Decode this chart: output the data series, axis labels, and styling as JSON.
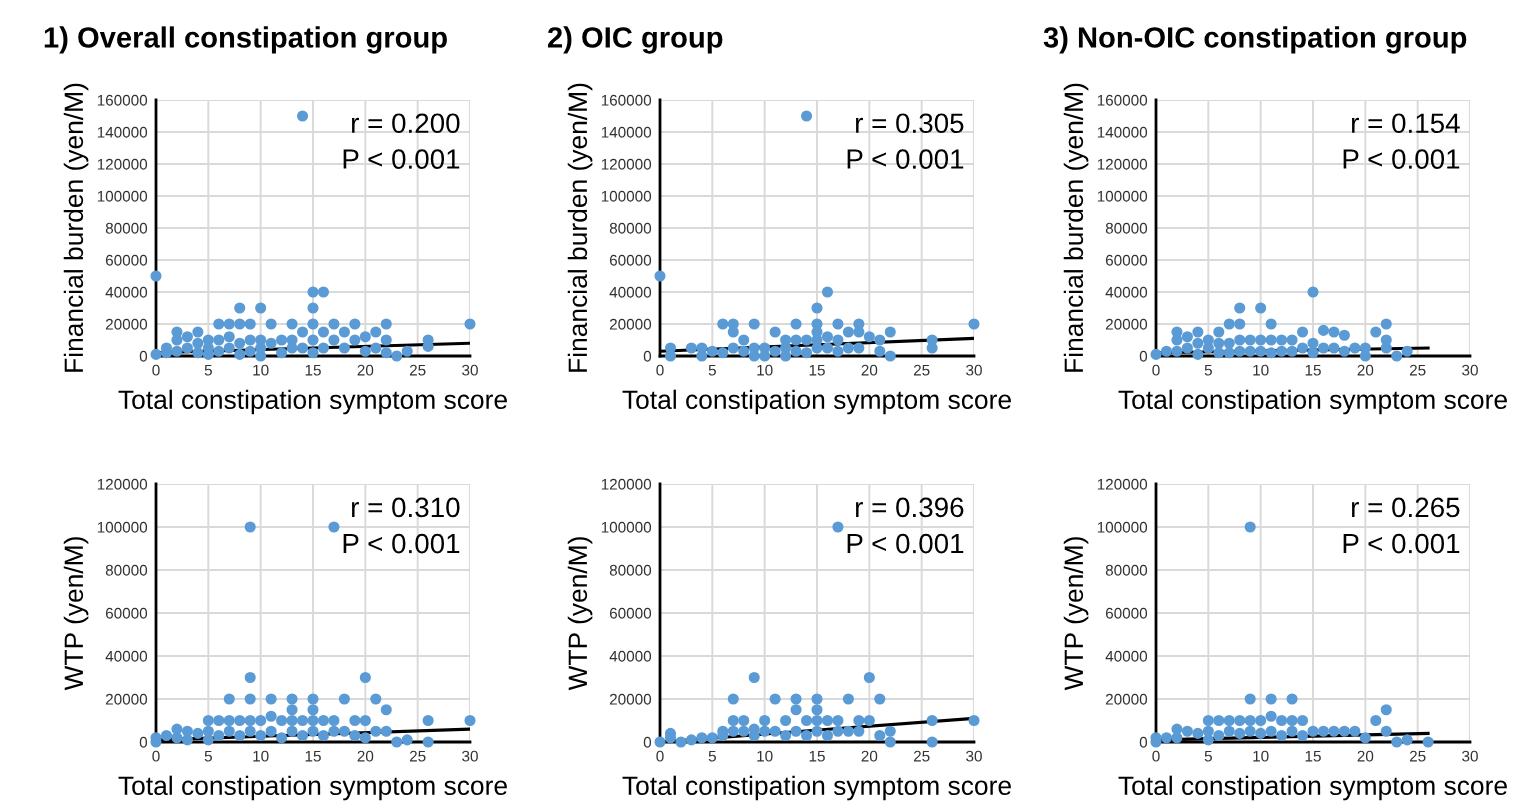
{
  "chart_data": [
    {
      "type": "scatter",
      "title": "1) Overall constipation group",
      "xlabel": "Total constipation symptom score",
      "ylabel": "Financial burden (yen/M)",
      "xlim": [
        0,
        30
      ],
      "ylim": [
        0,
        160000
      ],
      "xticks": [
        0,
        5,
        10,
        15,
        20,
        25,
        30
      ],
      "yticks": [
        0,
        20000,
        40000,
        60000,
        80000,
        100000,
        120000,
        140000,
        160000
      ],
      "grid": true,
      "annotations": [
        "r = 0.200",
        "P < 0.001"
      ],
      "series": [
        {
          "type": "scatter",
          "marker": "circle",
          "color": "#5b9bd5",
          "x": [
            0,
            0,
            1,
            1,
            2,
            2,
            2,
            3,
            3,
            4,
            4,
            4,
            5,
            5,
            5,
            6,
            6,
            6,
            7,
            7,
            7,
            8,
            8,
            8,
            8,
            9,
            9,
            9,
            10,
            10,
            10,
            10,
            11,
            11,
            12,
            12,
            13,
            13,
            13,
            14,
            14,
            14,
            15,
            15,
            15,
            15,
            15,
            16,
            16,
            16,
            17,
            17,
            18,
            18,
            19,
            19,
            20,
            20,
            21,
            21,
            22,
            22,
            22,
            23,
            24,
            26,
            26,
            30
          ],
          "values": [
            50000,
            1000,
            2000,
            5000,
            15000,
            10000,
            3000,
            12000,
            5000,
            15000,
            8000,
            2000,
            10000,
            5000,
            1000,
            20000,
            10000,
            3000,
            20000,
            12000,
            5000,
            30000,
            20000,
            8000,
            1000,
            20000,
            10000,
            3000,
            30000,
            10000,
            5000,
            0,
            20000,
            8000,
            10000,
            2000,
            20000,
            10000,
            5000,
            150000,
            15000,
            5000,
            40000,
            30000,
            20000,
            10000,
            2000,
            40000,
            15000,
            5000,
            20000,
            10000,
            15000,
            5000,
            20000,
            10000,
            12000,
            3000,
            15000,
            5000,
            20000,
            10000,
            2000,
            0,
            3000,
            10000,
            6000,
            20000
          ]
        },
        {
          "type": "line",
          "color": "#000000",
          "x": [
            0,
            30
          ],
          "values": [
            2000,
            8000
          ]
        }
      ]
    },
    {
      "type": "scatter",
      "title": "2) OIC group",
      "xlabel": "Total constipation symptom score",
      "ylabel": "Financial burden (yen/M)",
      "xlim": [
        0,
        30
      ],
      "ylim": [
        0,
        160000
      ],
      "xticks": [
        0,
        5,
        10,
        15,
        20,
        25,
        30
      ],
      "yticks": [
        0,
        20000,
        40000,
        60000,
        80000,
        100000,
        120000,
        140000,
        160000
      ],
      "grid": true,
      "annotations": [
        "r = 0.305",
        "P < 0.001"
      ],
      "series": [
        {
          "type": "scatter",
          "marker": "circle",
          "color": "#5b9bd5",
          "x": [
            0,
            1,
            1,
            3,
            4,
            4,
            5,
            6,
            6,
            7,
            7,
            7,
            8,
            8,
            9,
            9,
            9,
            10,
            10,
            11,
            11,
            12,
            12,
            12,
            13,
            13,
            13,
            14,
            14,
            14,
            15,
            15,
            15,
            15,
            15,
            16,
            16,
            16,
            17,
            17,
            17,
            18,
            18,
            19,
            19,
            19,
            20,
            21,
            21,
            22,
            22,
            26,
            26,
            30
          ],
          "values": [
            50000,
            5000,
            0,
            5000,
            5000,
            0,
            3000,
            20000,
            2000,
            20000,
            15000,
            5000,
            10000,
            3000,
            20000,
            5000,
            0,
            5000,
            0,
            15000,
            3000,
            10000,
            5000,
            0,
            20000,
            10000,
            3000,
            150000,
            10000,
            2000,
            30000,
            20000,
            15000,
            10000,
            5000,
            40000,
            12000,
            5000,
            20000,
            10000,
            3000,
            15000,
            5000,
            20000,
            15000,
            5000,
            12000,
            10000,
            3000,
            15000,
            0,
            10000,
            5000,
            20000
          ]
        },
        {
          "type": "line",
          "color": "#000000",
          "x": [
            0,
            30
          ],
          "values": [
            3000,
            11000
          ]
        }
      ]
    },
    {
      "type": "scatter",
      "title": "3) Non-OIC constipation group",
      "xlabel": "Total constipation symptom score",
      "ylabel": "Financial burden (yen/M)",
      "xlim": [
        0,
        30
      ],
      "ylim": [
        0,
        160000
      ],
      "xticks": [
        0,
        5,
        10,
        15,
        20,
        25,
        30
      ],
      "yticks": [
        0,
        20000,
        40000,
        60000,
        80000,
        100000,
        120000,
        140000,
        160000
      ],
      "grid": true,
      "annotations": [
        "r = 0.154",
        "P < 0.001"
      ],
      "series": [
        {
          "type": "scatter",
          "marker": "circle",
          "color": "#5b9bd5",
          "x": [
            0,
            1,
            2,
            2,
            2,
            3,
            3,
            4,
            4,
            4,
            5,
            5,
            6,
            6,
            6,
            7,
            7,
            7,
            8,
            8,
            8,
            8,
            9,
            9,
            10,
            10,
            10,
            11,
            11,
            11,
            12,
            12,
            13,
            13,
            14,
            14,
            15,
            15,
            15,
            16,
            16,
            17,
            17,
            18,
            18,
            19,
            20,
            20,
            21,
            22,
            22,
            22,
            23,
            24
          ],
          "values": [
            1000,
            3000,
            15000,
            10000,
            3000,
            12000,
            5000,
            15000,
            8000,
            1000,
            10000,
            5000,
            15000,
            8000,
            2000,
            20000,
            8000,
            2000,
            30000,
            20000,
            10000,
            3000,
            10000,
            3000,
            30000,
            10000,
            3000,
            20000,
            10000,
            2000,
            10000,
            3000,
            10000,
            3000,
            15000,
            5000,
            40000,
            8000,
            2000,
            16000,
            5000,
            15000,
            5000,
            13000,
            3000,
            5000,
            5000,
            0,
            15000,
            20000,
            10000,
            5000,
            0,
            3000
          ]
        },
        {
          "type": "line",
          "color": "#000000",
          "x": [
            0,
            26
          ],
          "values": [
            2000,
            5000
          ]
        }
      ]
    },
    {
      "type": "scatter",
      "xlabel": "Total constipation symptom score",
      "ylabel": "WTP (yen/M)",
      "xlim": [
        0,
        30
      ],
      "ylim": [
        0,
        120000
      ],
      "xticks": [
        0,
        5,
        10,
        15,
        20,
        25,
        30
      ],
      "yticks": [
        0,
        20000,
        40000,
        60000,
        80000,
        100000,
        120000
      ],
      "grid": true,
      "annotations": [
        "r = 0.310",
        "P < 0.001"
      ],
      "series": [
        {
          "type": "scatter",
          "marker": "circle",
          "color": "#5b9bd5",
          "x": [
            0,
            0,
            1,
            2,
            2,
            3,
            3,
            4,
            5,
            5,
            5,
            6,
            6,
            7,
            7,
            7,
            8,
            8,
            9,
            9,
            9,
            9,
            9,
            10,
            10,
            11,
            11,
            11,
            12,
            12,
            13,
            13,
            13,
            13,
            14,
            14,
            15,
            15,
            15,
            15,
            16,
            16,
            17,
            17,
            17,
            18,
            18,
            19,
            19,
            20,
            20,
            20,
            21,
            21,
            22,
            22,
            23,
            24,
            26,
            26,
            30
          ],
          "values": [
            2000,
            0,
            3000,
            6000,
            2000,
            5000,
            1000,
            4000,
            10000,
            5000,
            1000,
            10000,
            3000,
            20000,
            10000,
            5000,
            10000,
            3000,
            100000,
            30000,
            20000,
            10000,
            5000,
            10000,
            3000,
            20000,
            12000,
            5000,
            10000,
            2000,
            20000,
            15000,
            10000,
            5000,
            10000,
            3000,
            20000,
            15000,
            10000,
            5000,
            10000,
            3000,
            100000,
            10000,
            5000,
            20000,
            5000,
            10000,
            3000,
            30000,
            10000,
            2000,
            20000,
            5000,
            15000,
            5000,
            0,
            1000,
            10000,
            0,
            10000
          ]
        },
        {
          "type": "line",
          "color": "#000000",
          "x": [
            0,
            30
          ],
          "values": [
            1000,
            6000
          ]
        }
      ]
    },
    {
      "type": "scatter",
      "xlabel": "Total constipation symptom score",
      "ylabel": "WTP (yen/M)",
      "xlim": [
        0,
        30
      ],
      "ylim": [
        0,
        120000
      ],
      "xticks": [
        0,
        5,
        10,
        15,
        20,
        25,
        30
      ],
      "yticks": [
        0,
        20000,
        40000,
        60000,
        80000,
        100000,
        120000
      ],
      "grid": true,
      "annotations": [
        "r = 0.396",
        "P < 0.001"
      ],
      "series": [
        {
          "type": "scatter",
          "marker": "circle",
          "color": "#5b9bd5",
          "x": [
            0,
            1,
            1,
            2,
            3,
            4,
            5,
            6,
            6,
            7,
            7,
            7,
            8,
            8,
            9,
            9,
            9,
            10,
            10,
            11,
            11,
            12,
            12,
            13,
            13,
            13,
            14,
            14,
            15,
            15,
            15,
            15,
            16,
            16,
            17,
            17,
            17,
            18,
            18,
            19,
            19,
            20,
            20,
            21,
            21,
            22,
            22,
            26,
            26,
            30
          ],
          "values": [
            0,
            4000,
            2000,
            0,
            1000,
            2000,
            2000,
            5000,
            3000,
            20000,
            10000,
            5000,
            10000,
            5000,
            30000,
            6000,
            3000,
            10000,
            5000,
            20000,
            5000,
            10000,
            3000,
            20000,
            15000,
            5000,
            10000,
            3000,
            20000,
            15000,
            10000,
            5000,
            10000,
            3000,
            100000,
            10000,
            5000,
            20000,
            5000,
            10000,
            5000,
            30000,
            10000,
            20000,
            3000,
            5000,
            0,
            10000,
            0,
            10000
          ]
        },
        {
          "type": "line",
          "color": "#000000",
          "x": [
            0,
            30
          ],
          "values": [
            0,
            11000
          ]
        }
      ]
    },
    {
      "type": "scatter",
      "xlabel": "Total constipation symptom score",
      "ylabel": "WTP (yen/M)",
      "xlim": [
        0,
        30
      ],
      "ylim": [
        0,
        120000
      ],
      "xticks": [
        0,
        5,
        10,
        15,
        20,
        25,
        30
      ],
      "yticks": [
        0,
        20000,
        40000,
        60000,
        80000,
        100000,
        120000
      ],
      "grid": true,
      "annotations": [
        "r = 0.265",
        "P < 0.001"
      ],
      "series": [
        {
          "type": "scatter",
          "marker": "circle",
          "color": "#5b9bd5",
          "x": [
            0,
            0,
            1,
            2,
            2,
            3,
            4,
            5,
            5,
            5,
            6,
            6,
            7,
            7,
            8,
            8,
            9,
            9,
            9,
            9,
            10,
            10,
            11,
            11,
            11,
            12,
            12,
            13,
            13,
            13,
            14,
            14,
            15,
            16,
            17,
            18,
            19,
            20,
            21,
            22,
            22,
            23,
            24,
            26
          ],
          "values": [
            2000,
            0,
            2000,
            6000,
            2000,
            5000,
            4000,
            10000,
            5000,
            1000,
            10000,
            3000,
            10000,
            5000,
            10000,
            4000,
            100000,
            20000,
            10000,
            5000,
            10000,
            4000,
            20000,
            12000,
            5000,
            10000,
            3000,
            20000,
            10000,
            5000,
            10000,
            3000,
            5000,
            5000,
            5000,
            5000,
            5000,
            2000,
            10000,
            15000,
            5000,
            0,
            1000,
            0
          ]
        },
        {
          "type": "line",
          "color": "#000000",
          "x": [
            0,
            26
          ],
          "values": [
            1000,
            4000
          ]
        }
      ]
    }
  ]
}
